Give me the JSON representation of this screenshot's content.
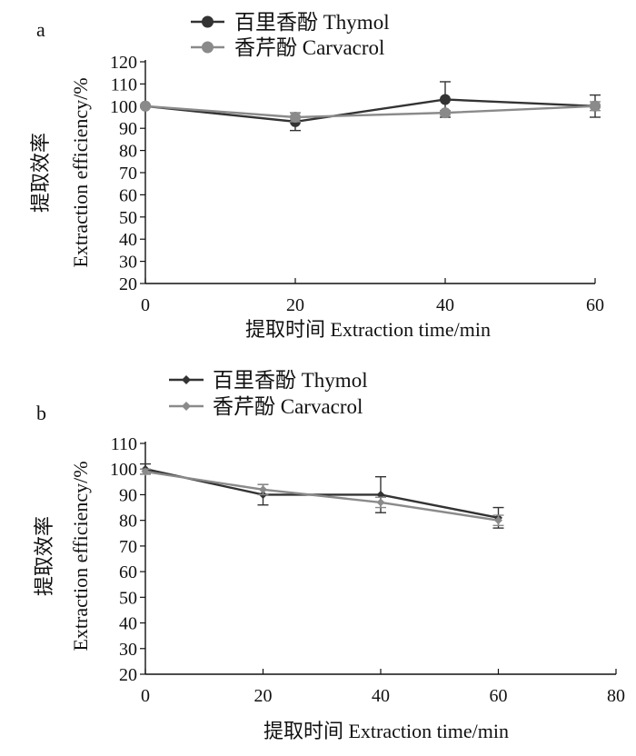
{
  "chart_data": [
    {
      "panel_label": "a",
      "type": "line",
      "xlabel": "提取时间  Extraction time/min",
      "ylabel_cn": "提取效率",
      "ylabel_en": "Extraction efficiency/%",
      "x": [
        0,
        20,
        40,
        60
      ],
      "x_ticks": [
        "0",
        "20",
        "40",
        "60"
      ],
      "xlim": [
        0,
        60
      ],
      "y_ticks": [
        "20",
        "30",
        "40",
        "50",
        "60",
        "70",
        "80",
        "90",
        "100",
        "110",
        "120"
      ],
      "ylim": [
        20,
        120
      ],
      "grid": false,
      "legend_position": "top-left",
      "series": [
        {
          "name": "百里香酚 Thymol",
          "values": [
            100,
            93,
            103,
            100
          ],
          "errors": [
            0,
            4,
            8,
            5
          ],
          "color": "#333333",
          "marker": "circle"
        },
        {
          "name": "香芹酚 Carvacrol",
          "values": [
            100,
            95,
            97,
            100
          ],
          "errors": [
            0,
            2,
            1,
            2
          ],
          "color": "#8a8a8a",
          "marker": "circle"
        }
      ]
    },
    {
      "panel_label": "b",
      "type": "line",
      "xlabel": "提取时间  Extraction time/min",
      "ylabel_cn": "提取效率",
      "ylabel_en": "Extraction efficiency/%",
      "x": [
        0,
        20,
        40,
        60
      ],
      "x_ticks": [
        "0",
        "20",
        "40",
        "60",
        "80"
      ],
      "xlim": [
        0,
        80
      ],
      "y_ticks": [
        "20",
        "30",
        "40",
        "50",
        "60",
        "70",
        "80",
        "90",
        "100",
        "110"
      ],
      "ylim": [
        20,
        110
      ],
      "grid": false,
      "legend_position": "top-left",
      "series": [
        {
          "name": "百里香酚 Thymol",
          "values": [
            100,
            90,
            90,
            81
          ],
          "errors": [
            2,
            4,
            7,
            4
          ],
          "color": "#333333",
          "marker": "diamond"
        },
        {
          "name": "香芹酚 Carvacrol",
          "values": [
            99,
            92,
            87,
            80
          ],
          "errors": [
            1,
            2,
            2,
            2
          ],
          "color": "#8a8a8a",
          "marker": "diamond"
        }
      ]
    }
  ]
}
